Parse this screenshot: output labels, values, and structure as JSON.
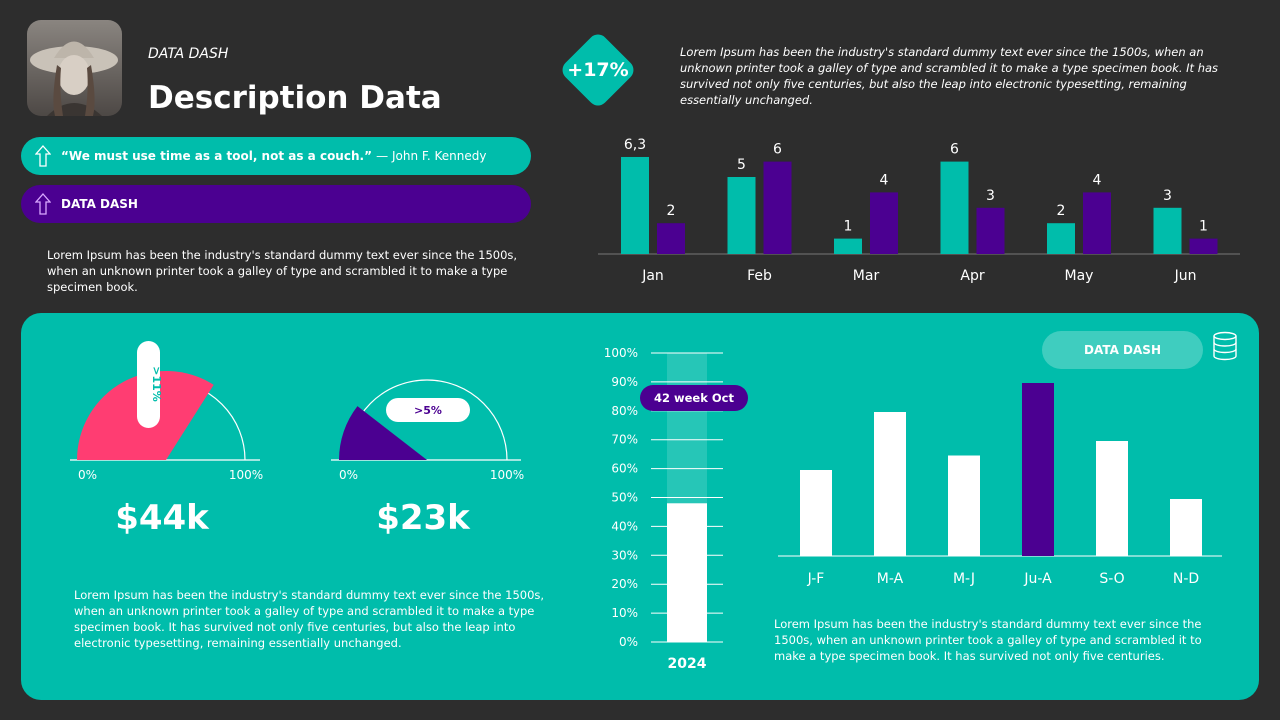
{
  "header": {
    "subtitle": "DATA DASH",
    "title": "Description Data",
    "quote": "“We must use time as a tool, not as a couch.”",
    "quote_author": "— John F. Kennedy",
    "banner_label": "DATA DASH",
    "description": "Lorem Ipsum has been the industry's standard dummy text ever since the 1500s, when an unknown printer took a galley of type and scrambled it to make a type specimen book."
  },
  "kpi": {
    "badge": "+17%",
    "description": "Lorem Ipsum has been the industry's standard dummy text ever since the 1500s, when an unknown printer took a galley of type and scrambled it to make a type specimen book. It has survived not only five centuries, but also the leap into electronic typesetting, remaining essentially unchanged."
  },
  "colors": {
    "teal": "#00bdab",
    "purple": "#4b0091",
    "pink": "#ff3d72",
    "background": "#2d2d2d"
  },
  "panel": {
    "description_left": "Lorem Ipsum has been the industry's standard dummy text ever since the 1500s, when an unknown printer took a galley of type and scrambled it to make a type specimen book. It has survived not only five centuries, but also the leap into electronic typesetting, remaining essentially unchanged.",
    "description_right": "Lorem Ipsum has been the industry's standard dummy text ever since the 1500s, when an unknown printer took a galley of type and scrambled it to make a type specimen book. It has survived not only five centuries.",
    "button_label": "DATA DASH",
    "icon": "database-icon"
  },
  "chart_data": [
    {
      "type": "bar",
      "categories": [
        "Jan",
        "Feb",
        "Mar",
        "Apr",
        "May",
        "Jun"
      ],
      "series": [
        {
          "values": [
            6.3,
            5,
            1,
            6,
            2,
            3
          ],
          "labels": [
            "6,3",
            "5",
            "1",
            "6",
            "2",
            "3"
          ],
          "color": "#00bdab"
        },
        {
          "values": [
            2,
            6,
            4,
            3,
            4,
            1
          ],
          "labels": [
            "2",
            "6",
            "4",
            "3",
            "4",
            "1"
          ],
          "color": "#4b0091"
        }
      ]
    },
    {
      "type": "gauge",
      "value_percent": 68,
      "label": ">11%",
      "min_label": "0%",
      "max_label": "100%",
      "amount": "$44k",
      "color": "#ff3d72"
    },
    {
      "type": "gauge",
      "value_percent": 21,
      "label": ">5%",
      "min_label": "0%",
      "max_label": "100%",
      "amount": "$23k",
      "color": "#4b0091"
    },
    {
      "type": "bar",
      "categories": [
        "2024"
      ],
      "values": [
        48
      ],
      "ylim": [
        0,
        100
      ],
      "yticks": [
        "0%",
        "10%",
        "20%",
        "30%",
        "40%",
        "50%",
        "60%",
        "70%",
        "80%",
        "90%",
        "100%"
      ],
      "annotation": "42 week Oct"
    },
    {
      "type": "bar",
      "categories": [
        "J-F",
        "M-A",
        "M-J",
        "Ju-A",
        "S-O",
        "N-D"
      ],
      "values": [
        60,
        80,
        65,
        90,
        70,
        50
      ],
      "highlight": "Ju-A",
      "ylim": [
        30,
        90
      ]
    }
  ]
}
